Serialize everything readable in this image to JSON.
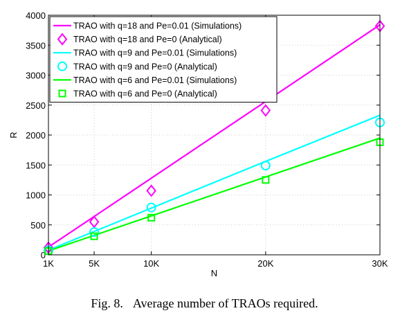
{
  "figure": {
    "caption_label": "Fig. 8.",
    "caption_text": "Average number of TRAOs required."
  },
  "chart_data": {
    "type": "line",
    "title": "",
    "xlabel": "N",
    "ylabel": "R",
    "x": [
      1000,
      5000,
      10000,
      20000,
      30000
    ],
    "x_tick_labels": [
      "1K",
      "5K",
      "10K",
      "20K",
      "30K"
    ],
    "ylim": [
      0,
      4000
    ],
    "y_ticks": [
      0,
      500,
      1000,
      1500,
      2000,
      2500,
      3000,
      3500,
      4000
    ],
    "y_tick_labels": [
      "0",
      "500",
      "1000",
      "1500",
      "2000",
      "2500",
      "3000",
      "3500",
      "4000"
    ],
    "grid": true,
    "legend_position": "top-left",
    "series": [
      {
        "name": "TRAO with q=18 and Pe=0.01 (Simulations)",
        "style": "line",
        "color": "#ff00ff",
        "values": [
          130,
          640,
          1280,
          2560,
          3840
        ]
      },
      {
        "name": "TRAO with q=18 and Pe=0 (Analytical)",
        "style": "marker",
        "marker": "diamond",
        "color": "#ff00ff",
        "values": [
          120,
          550,
          1070,
          2410,
          3820
        ]
      },
      {
        "name": "TRAO with q=9 and Pe=0.01 (Simulations)",
        "style": "line",
        "color": "#00ffff",
        "values": [
          78,
          390,
          780,
          1560,
          2330
        ]
      },
      {
        "name": "TRAO with q=9 and Pe=0 (Analytical)",
        "style": "marker",
        "marker": "circle",
        "color": "#00ffff",
        "values": [
          75,
          380,
          790,
          1490,
          2210
        ]
      },
      {
        "name": "TRAO with q=6 and Pe=0.01 (Simulations)",
        "style": "line",
        "color": "#00ff00",
        "values": [
          65,
          325,
          650,
          1300,
          1950
        ]
      },
      {
        "name": "TRAO with q=6 and Pe=0 (Analytical)",
        "style": "marker",
        "marker": "square",
        "color": "#00ff00",
        "values": [
          63,
          310,
          620,
          1250,
          1880
        ]
      }
    ]
  }
}
